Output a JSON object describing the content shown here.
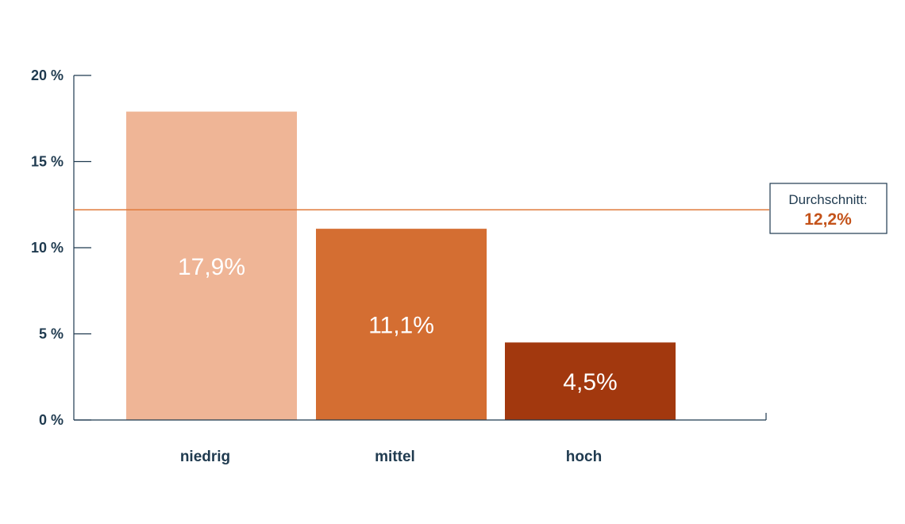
{
  "chart_data": {
    "type": "bar",
    "categories": [
      "niedrig",
      "mittel",
      "hoch"
    ],
    "values": [
      17.9,
      11.1,
      4.5
    ],
    "value_labels": [
      "17,9%",
      "11,1%",
      "4,5%"
    ],
    "bar_colors": [
      "#efb596",
      "#d46e32",
      "#a2380e"
    ],
    "ylim": [
      0,
      20
    ],
    "yticks": [
      0,
      5,
      10,
      15,
      20
    ],
    "ytick_labels": [
      "0 %",
      "5 %",
      "10 %",
      "15 %",
      "20 %"
    ],
    "grid": false,
    "average": {
      "value": 12.2,
      "label": "Durchschnitt:",
      "value_label": "12,2%",
      "color": "#e07b3c"
    },
    "axis_color": "#1f3a4f",
    "text_color": "#1f3a4f"
  }
}
